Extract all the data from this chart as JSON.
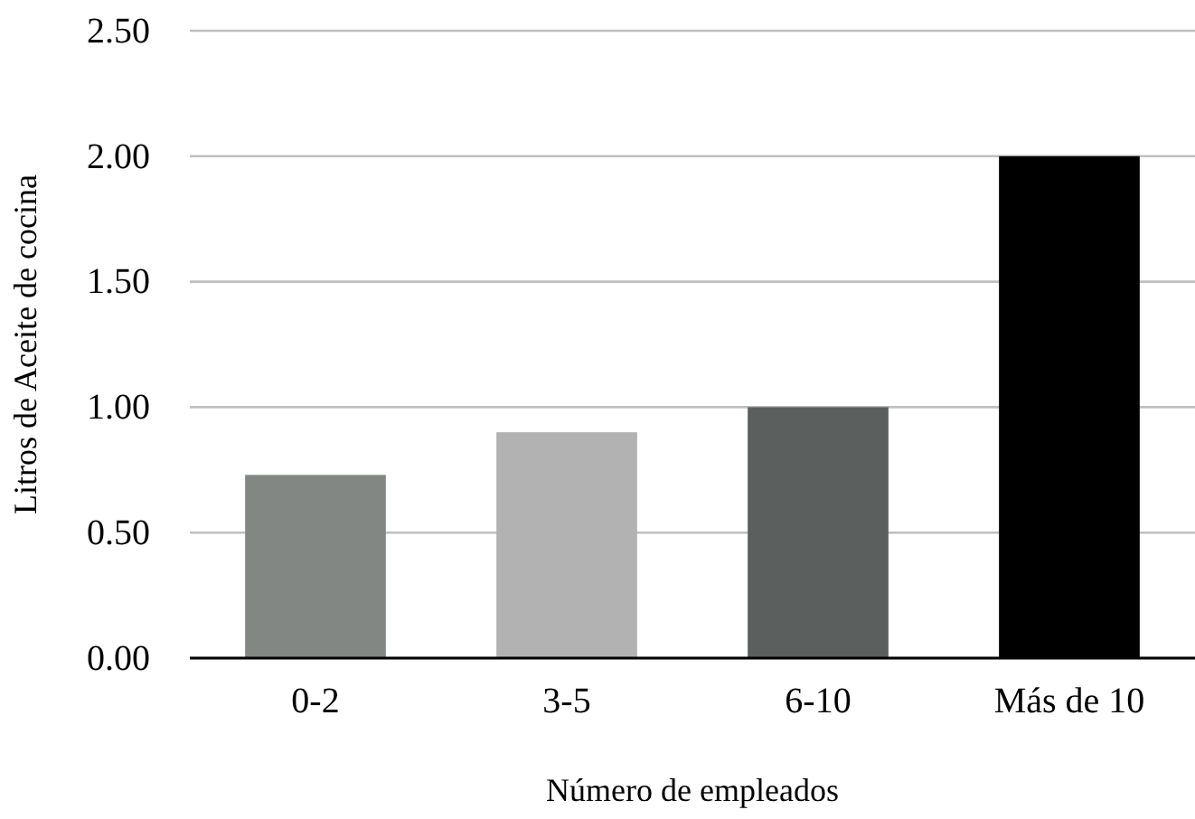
{
  "chart_data": {
    "type": "bar",
    "xlabel": "Número de empleados",
    "ylabel": "Litros de Aceite de cocina",
    "categories": [
      "0-2",
      "3-5",
      "6-10",
      "Más de 10"
    ],
    "values": [
      0.73,
      0.9,
      1.0,
      2.0
    ],
    "colors": [
      "#828784",
      "#b2b2b2",
      "#5b5f5d",
      "#000000"
    ],
    "ylim": [
      0,
      2.5
    ],
    "yticks": [
      {
        "value": 0,
        "label": "0.00"
      },
      {
        "value": 0.5,
        "label": "0.50"
      },
      {
        "value": 1,
        "label": "1.00"
      },
      {
        "value": 1.5,
        "label": "1.50"
      },
      {
        "value": 2,
        "label": "2.00"
      },
      {
        "value": 2.5,
        "label": "2.50"
      }
    ],
    "grid": "y"
  }
}
